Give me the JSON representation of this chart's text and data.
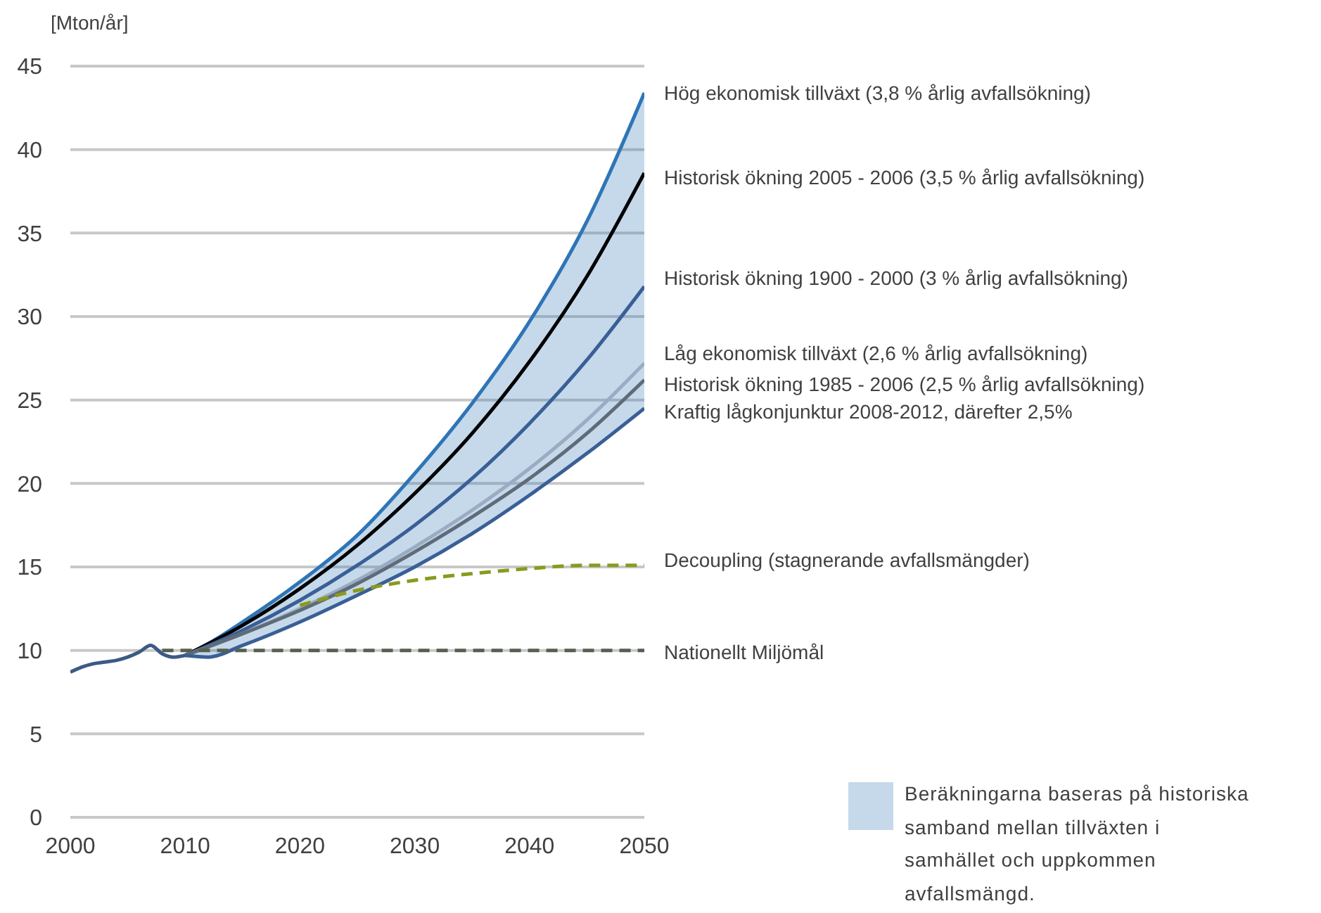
{
  "chart_data": {
    "type": "line",
    "ylabel": "[Mton/år]",
    "xlim": [
      2000,
      2050
    ],
    "xticks": [
      2000,
      2010,
      2020,
      2030,
      2040,
      2050
    ],
    "ylim": [
      0,
      45
    ],
    "yticks": [
      0,
      5,
      10,
      15,
      20,
      25,
      30,
      35,
      40,
      45
    ],
    "grid": "y",
    "marker": "none",
    "annotations": [
      "Beräkningarna baseras på historiska samband mellan tillväxten i samhället och uppkommen avfallsmängd."
    ],
    "series": [
      {
        "color": "#3b5b84",
        "x": [
          2000,
          2001,
          2002,
          2003,
          2004,
          2005,
          2006,
          2007,
          2008,
          2009,
          2010
        ],
        "values": [
          8.7,
          9.0,
          9.2,
          9.3,
          9.4,
          9.6,
          9.9,
          10.3,
          9.8,
          9.6,
          9.7
        ]
      },
      {
        "name": "Hög ekonomisk tillväxt  (3,8 % årlig avfallsökning)",
        "color": "#2e75b6",
        "x": [
          2010,
          2012,
          2015,
          2020,
          2025,
          2030,
          2035,
          2040,
          2045,
          2050
        ],
        "values": [
          9.7,
          10.4,
          11.7,
          14.1,
          16.9,
          20.6,
          24.8,
          29.7,
          35.7,
          43.4
        ],
        "lower": [
          9.7,
          9.6,
          10.3,
          11.7,
          13.3,
          15.0,
          17.0,
          19.3,
          21.8,
          24.5
        ],
        "upper": [
          9.7,
          10.4,
          11.7,
          14.1,
          16.9,
          20.6,
          24.8,
          29.7,
          35.7,
          43.4
        ]
      },
      {
        "name": "Historisk ökning 2005 - 2006  (3,5 % årlig avfallsökning)",
        "color": "#000000",
        "x": [
          2010,
          2015,
          2020,
          2025,
          2030,
          2035,
          2040,
          2045,
          2050
        ],
        "values": [
          9.7,
          11.5,
          13.7,
          16.3,
          19.4,
          23.0,
          27.3,
          32.4,
          38.6
        ]
      },
      {
        "name": "Historisk ökning 1900 - 2000  (3 % årlig avfallsökning)",
        "color": "#3a5f96",
        "x": [
          2010,
          2015,
          2020,
          2025,
          2030,
          2035,
          2040,
          2045,
          2050
        ],
        "values": [
          9.7,
          11.2,
          13.0,
          15.1,
          17.5,
          20.3,
          23.6,
          27.4,
          31.8
        ]
      },
      {
        "name": "Låg ekonomisk tillväxt  (2,6 % årlig avfallsökning)",
        "color": "#9aabc2",
        "x": [
          2010,
          2015,
          2020,
          2025,
          2030,
          2035,
          2040,
          2045,
          2050
        ],
        "values": [
          9.7,
          11.0,
          12.5,
          14.2,
          16.2,
          18.4,
          20.9,
          23.8,
          27.2
        ]
      },
      {
        "name": "Historisk ökning 1985  - 2006  (2,5 % årlig avfallsökning)",
        "color": "#5f6b78",
        "x": [
          2010,
          2015,
          2020,
          2025,
          2030,
          2035,
          2040,
          2045,
          2050
        ],
        "values": [
          9.7,
          11.0,
          12.4,
          14.0,
          15.9,
          18.0,
          20.3,
          23.0,
          26.2
        ]
      },
      {
        "name": "Kraftig lågkonjunktur 2008-2012,  därefter 2,5%",
        "color": "#3a5f96",
        "x": [
          2010,
          2012,
          2015,
          2020,
          2025,
          2030,
          2035,
          2040,
          2045,
          2050
        ],
        "values": [
          9.7,
          9.6,
          10.3,
          11.7,
          13.3,
          15.0,
          17.0,
          19.3,
          21.8,
          24.5
        ]
      },
      {
        "name": "Decoupling (stagnerande avfallsmängder)",
        "color": "#8a9a1e",
        "line_style": "dashed",
        "x": [
          2020,
          2025,
          2030,
          2035,
          2040,
          2045,
          2050
        ],
        "values": [
          12.7,
          13.6,
          14.2,
          14.6,
          14.9,
          15.1,
          15.1
        ]
      },
      {
        "name": "Nationellt Miljömål",
        "color": "#556050",
        "line_style": "dashed",
        "x": [
          2008,
          2050
        ],
        "values": [
          10.0,
          10.0
        ]
      }
    ]
  }
}
